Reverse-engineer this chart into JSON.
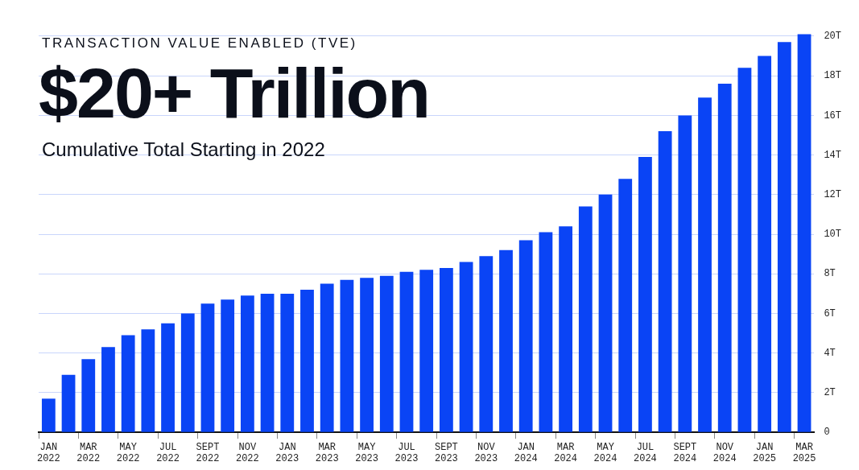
{
  "chart_data": {
    "type": "bar",
    "title": "$20+ Trillion",
    "subtitle": "Cumulative Total Starting in 2022",
    "annotations": [
      "TRANSACTION VALUE ENABLED (TVE)"
    ],
    "categories": [
      "JAN 2022",
      null,
      "MAR 2022",
      null,
      "MAY 2022",
      null,
      "JUL 2022",
      null,
      "SEPT 2022",
      null,
      "NOV 2022",
      null,
      "JAN 2023",
      null,
      "MAR 2023",
      null,
      "MAY 2023",
      null,
      "JUL 2023",
      null,
      "SEPT 2023",
      null,
      "NOV 2023",
      null,
      "JAN 2024",
      null,
      "MAR 2024",
      null,
      "MAY 2024",
      null,
      "JUL 2024",
      null,
      "SEPT 2024",
      null,
      "NOV 2024",
      null,
      "JAN 2025",
      null,
      "MAR 2025"
    ],
    "values": [
      1.7,
      2.9,
      3.7,
      4.3,
      4.9,
      5.2,
      5.5,
      6.0,
      6.5,
      6.7,
      6.9,
      7.0,
      7.0,
      7.2,
      7.5,
      7.7,
      7.8,
      7.9,
      8.1,
      8.2,
      8.3,
      8.6,
      8.9,
      9.2,
      9.7,
      10.1,
      10.4,
      11.4,
      12.0,
      12.8,
      13.9,
      15.2,
      16.0,
      16.9,
      17.6,
      18.4,
      19.0,
      19.7,
      20.1
    ],
    "color": "#0a44f5",
    "ylim": [
      0,
      20.2
    ],
    "yticks": [
      0,
      {
        "value": 2,
        "label": "2T"
      },
      {
        "value": 4,
        "label": "4T"
      },
      {
        "value": 6,
        "label": "6T"
      },
      {
        "value": 8,
        "label": "8T"
      },
      {
        "value": 10,
        "label": "10T"
      },
      {
        "value": 12,
        "label": "12T"
      },
      {
        "value": 14,
        "label": "14T"
      },
      {
        "value": 16,
        "label": "16T"
      },
      {
        "value": 18,
        "label": "18T"
      },
      {
        "value": 20,
        "label": "20T"
      }
    ],
    "grid": "y",
    "legend": false
  }
}
